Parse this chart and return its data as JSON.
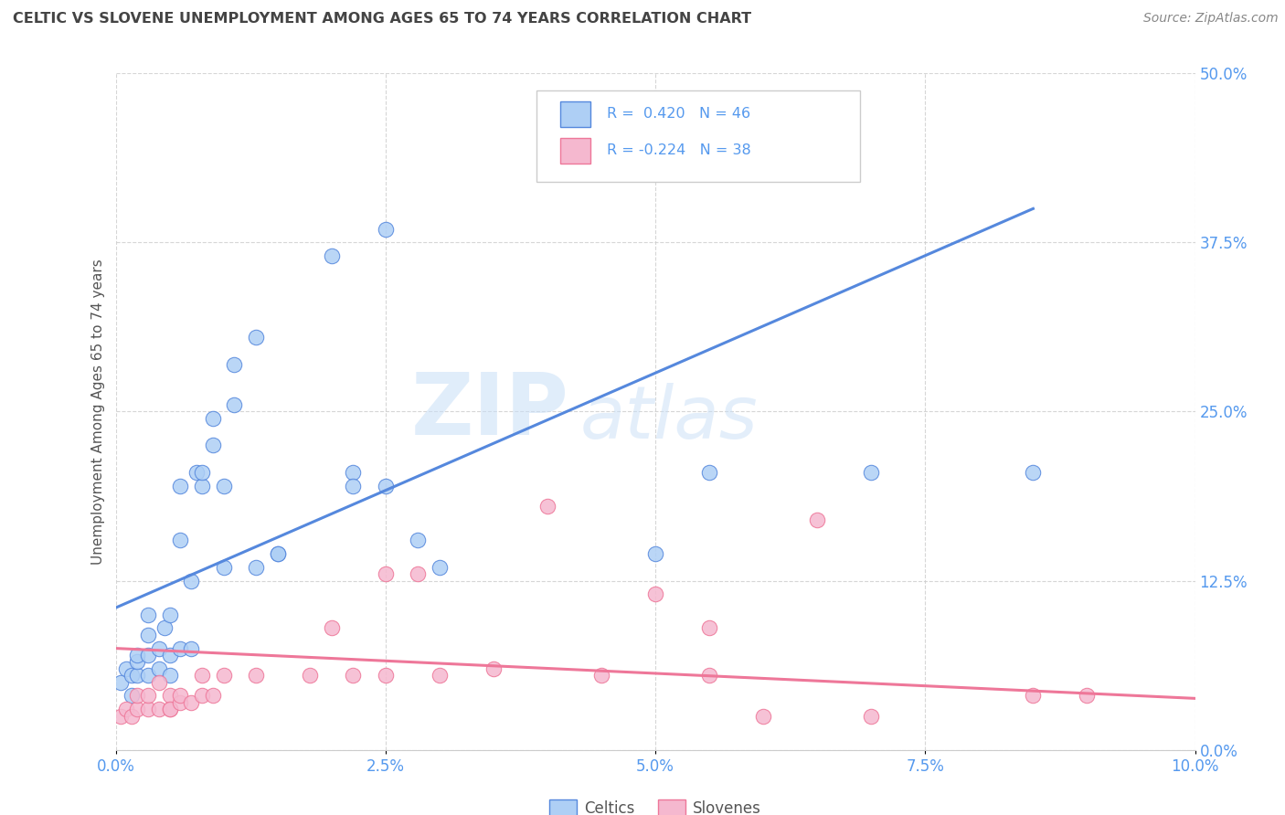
{
  "title": "CELTIC VS SLOVENE UNEMPLOYMENT AMONG AGES 65 TO 74 YEARS CORRELATION CHART",
  "source": "Source: ZipAtlas.com",
  "ylabel": "Unemployment Among Ages 65 to 74 years",
  "xlim": [
    0.0,
    0.1
  ],
  "ylim": [
    0.0,
    0.5
  ],
  "celtic_color": "#aecff5",
  "slovene_color": "#f5b8cf",
  "celtic_line_color": "#5588dd",
  "slovene_line_color": "#ee7799",
  "celtic_R": 0.42,
  "celtic_N": 46,
  "slovene_R": -0.224,
  "slovene_N": 38,
  "background_color": "#ffffff",
  "grid_color": "#cccccc",
  "watermark_zip": "ZIP",
  "watermark_atlas": "atlas",
  "legend_labels": [
    "Celtics",
    "Slovenes"
  ],
  "celtic_scatter_x": [
    0.0005,
    0.001,
    0.0015,
    0.0015,
    0.002,
    0.002,
    0.002,
    0.003,
    0.003,
    0.003,
    0.003,
    0.004,
    0.004,
    0.0045,
    0.005,
    0.005,
    0.005,
    0.006,
    0.006,
    0.006,
    0.007,
    0.007,
    0.0075,
    0.008,
    0.008,
    0.009,
    0.009,
    0.01,
    0.01,
    0.011,
    0.011,
    0.013,
    0.013,
    0.015,
    0.02,
    0.022,
    0.025,
    0.028,
    0.022,
    0.025,
    0.03,
    0.015,
    0.05,
    0.055,
    0.07,
    0.085
  ],
  "celtic_scatter_y": [
    0.05,
    0.06,
    0.04,
    0.055,
    0.055,
    0.065,
    0.07,
    0.055,
    0.07,
    0.085,
    0.1,
    0.06,
    0.075,
    0.09,
    0.055,
    0.07,
    0.1,
    0.075,
    0.155,
    0.195,
    0.075,
    0.125,
    0.205,
    0.195,
    0.205,
    0.225,
    0.245,
    0.135,
    0.195,
    0.255,
    0.285,
    0.305,
    0.135,
    0.145,
    0.365,
    0.205,
    0.385,
    0.155,
    0.195,
    0.195,
    0.135,
    0.145,
    0.145,
    0.205,
    0.205,
    0.205
  ],
  "slovene_scatter_x": [
    0.0005,
    0.001,
    0.0015,
    0.002,
    0.002,
    0.003,
    0.003,
    0.004,
    0.004,
    0.005,
    0.005,
    0.005,
    0.006,
    0.006,
    0.007,
    0.008,
    0.008,
    0.009,
    0.01,
    0.013,
    0.018,
    0.02,
    0.022,
    0.025,
    0.025,
    0.028,
    0.03,
    0.035,
    0.04,
    0.045,
    0.05,
    0.055,
    0.055,
    0.06,
    0.065,
    0.07,
    0.085,
    0.09
  ],
  "slovene_scatter_y": [
    0.025,
    0.03,
    0.025,
    0.03,
    0.04,
    0.03,
    0.04,
    0.03,
    0.05,
    0.03,
    0.04,
    0.03,
    0.035,
    0.04,
    0.035,
    0.04,
    0.055,
    0.04,
    0.055,
    0.055,
    0.055,
    0.09,
    0.055,
    0.055,
    0.13,
    0.13,
    0.055,
    0.06,
    0.18,
    0.055,
    0.115,
    0.09,
    0.055,
    0.025,
    0.17,
    0.025,
    0.04,
    0.04
  ],
  "celtic_line_x": [
    0.0,
    0.085
  ],
  "celtic_line_y": [
    0.105,
    0.4
  ],
  "slovene_line_x": [
    0.0,
    0.1
  ],
  "slovene_line_y": [
    0.075,
    0.038
  ],
  "tick_color": "#5599ee"
}
